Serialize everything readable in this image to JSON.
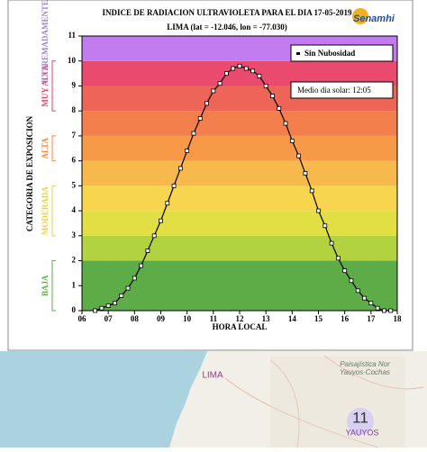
{
  "chart_data": {
    "type": "line",
    "title": "INDICE DE RADIACION ULTRAVIOLETA PARA EL DIA 17-05-2019",
    "subtitle": "LIMA (lat = -12.046, lon = -77.030)",
    "logo": "Senamhi",
    "xlabel": "HORA LOCAL",
    "ylabel": "CATEGORIA DE EXPOSICION",
    "annotation": "Medio dia solar: 12:05",
    "xlim": [
      6,
      18
    ],
    "xticks": [
      {
        "value": 6,
        "label": "06"
      },
      {
        "value": 7,
        "label": "07"
      },
      {
        "value": 8,
        "label": "08"
      },
      {
        "value": 9,
        "label": "09"
      },
      10,
      11,
      12,
      13,
      14,
      15,
      16,
      17,
      18
    ],
    "ylim": [
      0,
      11
    ],
    "yticks": [
      0,
      1,
      2,
      3,
      4,
      5,
      6,
      7,
      8,
      9,
      10,
      11
    ],
    "bands": [
      {
        "from": 0,
        "to": 2,
        "color": "#5eac48"
      },
      {
        "from": 2,
        "to": 3,
        "color": "#b3d23f"
      },
      {
        "from": 3,
        "to": 4,
        "color": "#e2df44"
      },
      {
        "from": 4,
        "to": 5,
        "color": "#f7d54e"
      },
      {
        "from": 5,
        "to": 6,
        "color": "#f8b94c"
      },
      {
        "from": 6,
        "to": 7,
        "color": "#f69a48"
      },
      {
        "from": 7,
        "to": 8,
        "color": "#f27f4c"
      },
      {
        "from": 8,
        "to": 9,
        "color": "#ec6556"
      },
      {
        "from": 9,
        "to": 10,
        "color": "#ea4a6e"
      },
      {
        "from": 10,
        "to": 11,
        "color": "#c27cf0"
      }
    ],
    "categories": [
      {
        "label": "BAJA",
        "from": 0,
        "to": 2,
        "color": "#5eac48"
      },
      {
        "label": "MODERADA",
        "from": 3,
        "to": 5,
        "color": "#e6d24a"
      },
      {
        "label": "ALTA",
        "from": 6,
        "to": 7,
        "color": "#f08a3a"
      },
      {
        "label": "MUY ALTA",
        "from": 8,
        "to": 10,
        "color": "#e0405c"
      },
      {
        "label": "EXTREMADAMENTE",
        "from": 11,
        "to": 11,
        "color": "#9a86c8"
      }
    ],
    "x": [
      6.5,
      6.75,
      7,
      7.25,
      7.5,
      7.75,
      8,
      8.25,
      8.5,
      8.75,
      9,
      9.25,
      9.5,
      9.75,
      10,
      10.25,
      10.5,
      10.75,
      11,
      11.25,
      11.5,
      11.75,
      12,
      12.25,
      12.5,
      12.75,
      13,
      13.25,
      13.5,
      13.75,
      14,
      14.25,
      14.5,
      14.75,
      15,
      15.25,
      15.5,
      15.75,
      16,
      16.25,
      16.5,
      16.75,
      17,
      17.25,
      17.5,
      17.75
    ],
    "series": [
      {
        "name": "Sin Nubosidad",
        "color": "#000000",
        "values": [
          0.0,
          0.1,
          0.2,
          0.3,
          0.6,
          0.9,
          1.3,
          1.8,
          2.4,
          3.0,
          3.6,
          4.3,
          5.0,
          5.7,
          6.4,
          7.1,
          7.7,
          8.3,
          8.8,
          9.1,
          9.5,
          9.7,
          9.8,
          9.7,
          9.6,
          9.4,
          9.0,
          8.6,
          8.1,
          7.5,
          6.8,
          6.2,
          5.5,
          4.8,
          4.0,
          3.4,
          2.7,
          2.1,
          1.6,
          1.2,
          0.8,
          0.5,
          0.3,
          0.1,
          0.0,
          0.0
        ]
      }
    ]
  },
  "map": {
    "labels": [
      "LIMA",
      "Paisajística Nor Yauyos-Cochas",
      "YAUYOS"
    ],
    "badge": "11"
  }
}
